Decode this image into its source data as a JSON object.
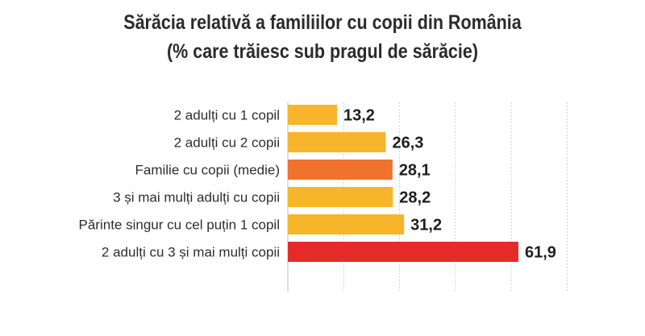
{
  "chart_data": {
    "type": "bar",
    "orientation": "horizontal",
    "title": "Sărăcia relativă a familiilor cu copii din România",
    "subtitle": "(% care trăiesc sub pragul de sărăcie)",
    "categories": [
      "2 adulți cu 1 copil",
      "2 adulți cu 2 copii",
      "Familie cu copii (medie)",
      "3 și mai mulți adulți cu copii",
      "Părinte singur cu cel puțin 1 copil",
      "2 adulți cu 3 și mai mulți copii"
    ],
    "values": [
      13.2,
      26.3,
      28.1,
      28.2,
      31.2,
      61.9
    ],
    "value_labels": [
      "13,2",
      "26,3",
      "28,1",
      "28,2",
      "31,2",
      "61,9"
    ],
    "colors": [
      "#f6b52a",
      "#f6b52a",
      "#f0722c",
      "#f6b52a",
      "#f6b52a",
      "#e52a2a"
    ],
    "xlim": [
      0,
      75
    ],
    "grid_ticks": [
      0,
      15,
      30,
      45,
      60,
      75
    ],
    "grid": true,
    "legend": "none"
  }
}
